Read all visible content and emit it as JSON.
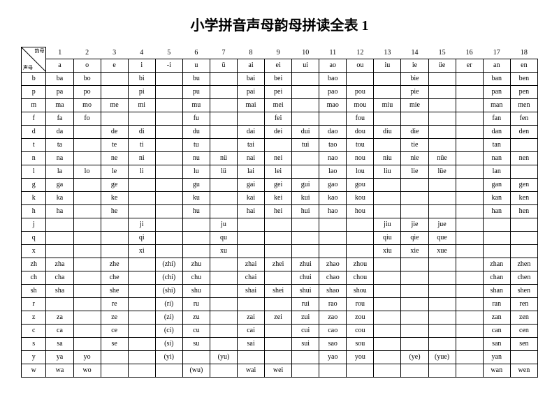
{
  "title": "小学拼音声母韵母拼读全表 1",
  "corner": {
    "top": "韵母",
    "bottom": "声母"
  },
  "col_numbers": [
    "1",
    "2",
    "3",
    "4",
    "5",
    "6",
    "7",
    "8",
    "9",
    "10",
    "11",
    "12",
    "13",
    "14",
    "15",
    "16",
    "17",
    "18"
  ],
  "headers": [
    "a",
    "o",
    "e",
    "i",
    "-i",
    "u",
    "ü",
    "ai",
    "ei",
    "ui",
    "ao",
    "ou",
    "iu",
    "ie",
    "üe",
    "er",
    "an",
    "en"
  ],
  "rows": [
    {
      "h": "b",
      "c": [
        "ba",
        "bo",
        "",
        "bi",
        "",
        "bu",
        "",
        "bai",
        "bei",
        "",
        "bao",
        "",
        "",
        "bie",
        "",
        "",
        "ban",
        "ben"
      ]
    },
    {
      "h": "p",
      "c": [
        "pa",
        "po",
        "",
        "pi",
        "",
        "pu",
        "",
        "pai",
        "pei",
        "",
        "pao",
        "pou",
        "",
        "pie",
        "",
        "",
        "pan",
        "pen"
      ]
    },
    {
      "h": "m",
      "c": [
        "ma",
        "mo",
        "me",
        "mi",
        "",
        "mu",
        "",
        "mai",
        "mei",
        "",
        "mao",
        "mou",
        "miu",
        "mie",
        "",
        "",
        "man",
        "men"
      ]
    },
    {
      "h": "f",
      "c": [
        "fa",
        "fo",
        "",
        "",
        "",
        "fu",
        "",
        "",
        "fei",
        "",
        "",
        "fou",
        "",
        "",
        "",
        "",
        "fan",
        "fen"
      ]
    },
    {
      "h": "d",
      "c": [
        "da",
        "",
        "de",
        "di",
        "",
        "du",
        "",
        "dai",
        "dei",
        "dui",
        "dao",
        "dou",
        "diu",
        "die",
        "",
        "",
        "dan",
        "den"
      ]
    },
    {
      "h": "t",
      "c": [
        "ta",
        "",
        "te",
        "ti",
        "",
        "tu",
        "",
        "tai",
        "",
        "tui",
        "tao",
        "tou",
        "",
        "tie",
        "",
        "",
        "tan",
        ""
      ]
    },
    {
      "h": "n",
      "c": [
        "na",
        "",
        "ne",
        "ni",
        "",
        "nu",
        "nü",
        "nai",
        "nei",
        "",
        "nao",
        "nou",
        "niu",
        "nie",
        "nüe",
        "",
        "nan",
        "nen"
      ]
    },
    {
      "h": "l",
      "c": [
        "la",
        "lo",
        "le",
        "li",
        "",
        "lu",
        "lü",
        "lai",
        "lei",
        "",
        "lao",
        "lou",
        "liu",
        "lie",
        "lüe",
        "",
        "lan",
        ""
      ]
    },
    {
      "h": "g",
      "c": [
        "ga",
        "",
        "ge",
        "",
        "",
        "gu",
        "",
        "gai",
        "gei",
        "gui",
        "gao",
        "gou",
        "",
        "",
        "",
        "",
        "gan",
        "gen"
      ]
    },
    {
      "h": "k",
      "c": [
        "ka",
        "",
        "ke",
        "",
        "",
        "ku",
        "",
        "kai",
        "kei",
        "kui",
        "kao",
        "kou",
        "",
        "",
        "",
        "",
        "kan",
        "ken"
      ]
    },
    {
      "h": "h",
      "c": [
        "ha",
        "",
        "he",
        "",
        "",
        "hu",
        "",
        "hai",
        "hei",
        "hui",
        "hao",
        "hou",
        "",
        "",
        "",
        "",
        "han",
        "hen"
      ]
    },
    {
      "h": "j",
      "c": [
        "",
        "",
        "",
        "ji",
        "",
        "",
        "ju",
        "",
        "",
        "",
        "",
        "",
        "jiu",
        "jie",
        "jue",
        "",
        "",
        ""
      ]
    },
    {
      "h": "q",
      "c": [
        "",
        "",
        "",
        "qi",
        "",
        "",
        "qu",
        "",
        "",
        "",
        "",
        "",
        "qiu",
        "qie",
        "que",
        "",
        "",
        ""
      ]
    },
    {
      "h": "x",
      "c": [
        "",
        "",
        "",
        "xi",
        "",
        "",
        "xu",
        "",
        "",
        "",
        "",
        "",
        "xiu",
        "xie",
        "xue",
        "",
        "",
        ""
      ]
    },
    {
      "h": "zh",
      "c": [
        "zha",
        "",
        "zhe",
        "",
        "(zhi)",
        "zhu",
        "",
        "zhai",
        "zhei",
        "zhui",
        "zhao",
        "zhou",
        "",
        "",
        "",
        "",
        "zhan",
        "zhen"
      ]
    },
    {
      "h": "ch",
      "c": [
        "cha",
        "",
        "che",
        "",
        "(chi)",
        "chu",
        "",
        "chai",
        "",
        "chui",
        "chao",
        "chou",
        "",
        "",
        "",
        "",
        "chan",
        "chen"
      ]
    },
    {
      "h": "sh",
      "c": [
        "sha",
        "",
        "she",
        "",
        "(shi)",
        "shu",
        "",
        "shai",
        "shei",
        "shui",
        "shao",
        "shou",
        "",
        "",
        "",
        "",
        "shan",
        "shen"
      ]
    },
    {
      "h": "r",
      "c": [
        "",
        "",
        "re",
        "",
        "(ri)",
        "ru",
        "",
        "",
        "",
        "rui",
        "rao",
        "rou",
        "",
        "",
        "",
        "",
        "ran",
        "ren"
      ]
    },
    {
      "h": "z",
      "c": [
        "za",
        "",
        "ze",
        "",
        "(zi)",
        "zu",
        "",
        "zai",
        "zei",
        "zui",
        "zao",
        "zou",
        "",
        "",
        "",
        "",
        "zan",
        "zen"
      ]
    },
    {
      "h": "c",
      "c": [
        "ca",
        "",
        "ce",
        "",
        "(ci)",
        "cu",
        "",
        "cai",
        "",
        "cui",
        "cao",
        "cou",
        "",
        "",
        "",
        "",
        "can",
        "cen"
      ]
    },
    {
      "h": "s",
      "c": [
        "sa",
        "",
        "se",
        "",
        "(si)",
        "su",
        "",
        "sai",
        "",
        "sui",
        "sao",
        "sou",
        "",
        "",
        "",
        "",
        "san",
        "sen"
      ]
    },
    {
      "h": "y",
      "c": [
        "ya",
        "yo",
        "",
        "",
        "(yi)",
        "",
        "(yu)",
        "",
        "",
        "",
        "yao",
        "you",
        "",
        "(ye)",
        "(yue)",
        "",
        "yan",
        ""
      ]
    },
    {
      "h": "w",
      "c": [
        "wa",
        "wo",
        "",
        "",
        "",
        "(wu)",
        "",
        "wai",
        "wei",
        "",
        "",
        "",
        "",
        "",
        "",
        "",
        "wan",
        "wen"
      ]
    }
  ]
}
